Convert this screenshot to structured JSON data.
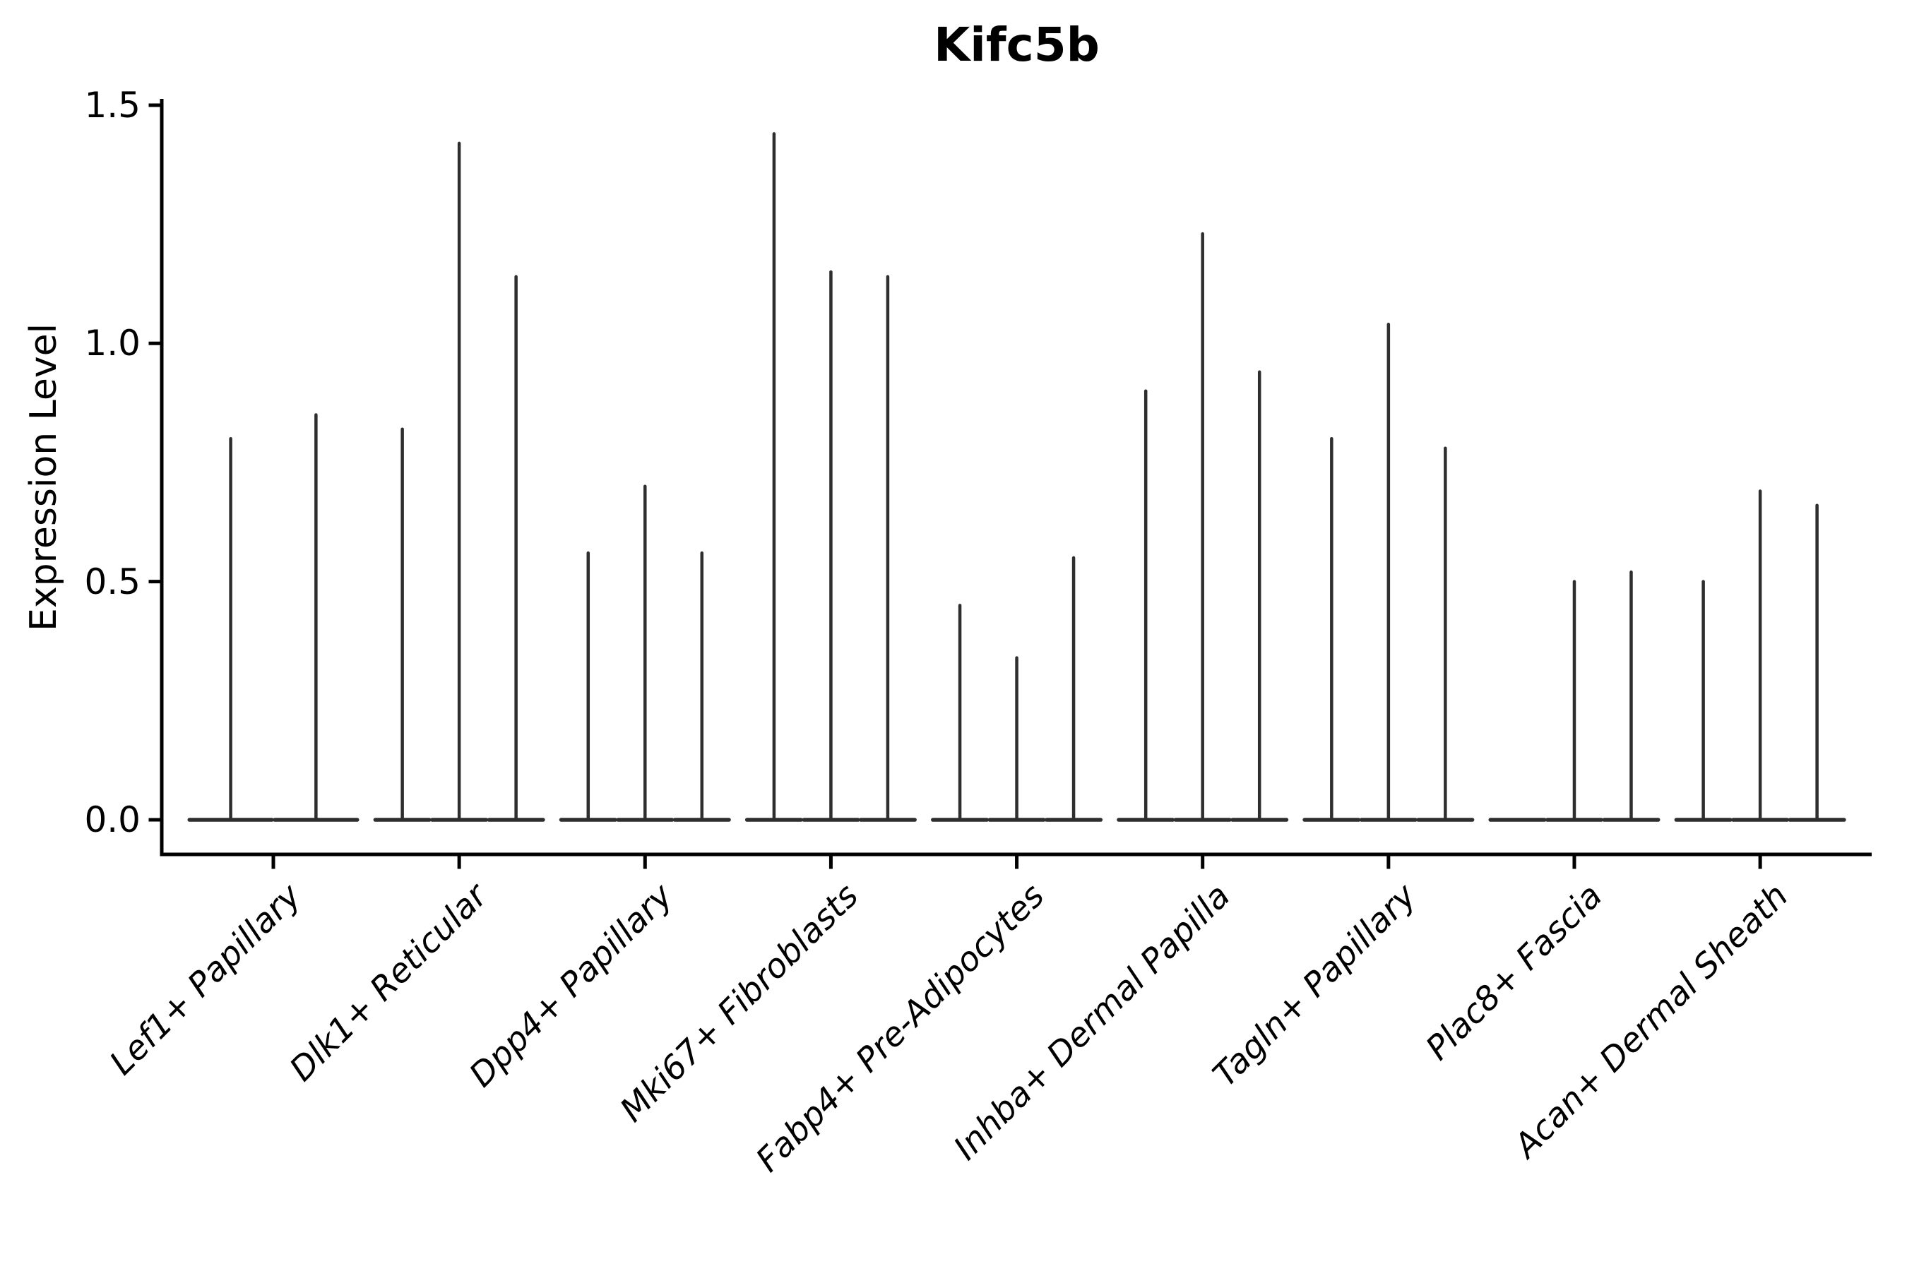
{
  "chart_data": {
    "type": "violin",
    "title": "Kifc5b",
    "ylabel": "Expression Level",
    "xlabel": "",
    "yticks": [
      "0.0",
      "0.5",
      "1.0",
      "1.5"
    ],
    "ytick_values": [
      0.0,
      0.5,
      1.0,
      1.5
    ],
    "ylim": [
      -0.07,
      1.51
    ],
    "grid": false,
    "legend": "none",
    "categories": [
      "Lef1+ Papillary",
      "Dlk1+ Reticular",
      "Dpp4+ Papillary",
      "Mki67+ Fibroblasts",
      "Fabp4+ Pre-Adipocytes",
      "Inhba+ Dermal Papilla",
      "Tagln+ Papillary",
      "Plac8+ Fascia",
      "Acan+ Dermal Sheath"
    ],
    "groups": [
      {
        "category": "Lef1+ Papillary",
        "violin_peak_values": [
          0.8,
          0.85
        ]
      },
      {
        "category": "Dlk1+ Reticular",
        "violin_peak_values": [
          0.82,
          1.42,
          1.14
        ]
      },
      {
        "category": "Dpp4+ Papillary",
        "violin_peak_values": [
          0.56,
          0.7,
          0.56
        ]
      },
      {
        "category": "Mki67+ Fibroblasts",
        "violin_peak_values": [
          1.44,
          1.15,
          1.14
        ]
      },
      {
        "category": "Fabp4+ Pre-Adipocytes",
        "violin_peak_values": [
          0.45,
          0.34,
          0.55
        ]
      },
      {
        "category": "Inhba+ Dermal Papilla",
        "violin_peak_values": [
          0.9,
          1.23,
          0.94
        ]
      },
      {
        "category": "Tagln+ Papillary",
        "violin_peak_values": [
          0.8,
          1.04,
          0.78
        ]
      },
      {
        "category": "Plac8+ Fascia",
        "violin_peak_values": [
          0.0,
          0.5,
          0.52
        ]
      },
      {
        "category": "Acan+ Dermal Sheath",
        "violin_peak_values": [
          0.5,
          0.69,
          0.66
        ]
      }
    ],
    "description": "Very thin needle-shaped violins (most cells zero expression) with flat bases at 0; each category holds 2-3 violins",
    "colors": {
      "violin_stroke": "#2e2e2e",
      "axis": "#000000",
      "text": "#000000",
      "background": "#ffffff"
    }
  }
}
